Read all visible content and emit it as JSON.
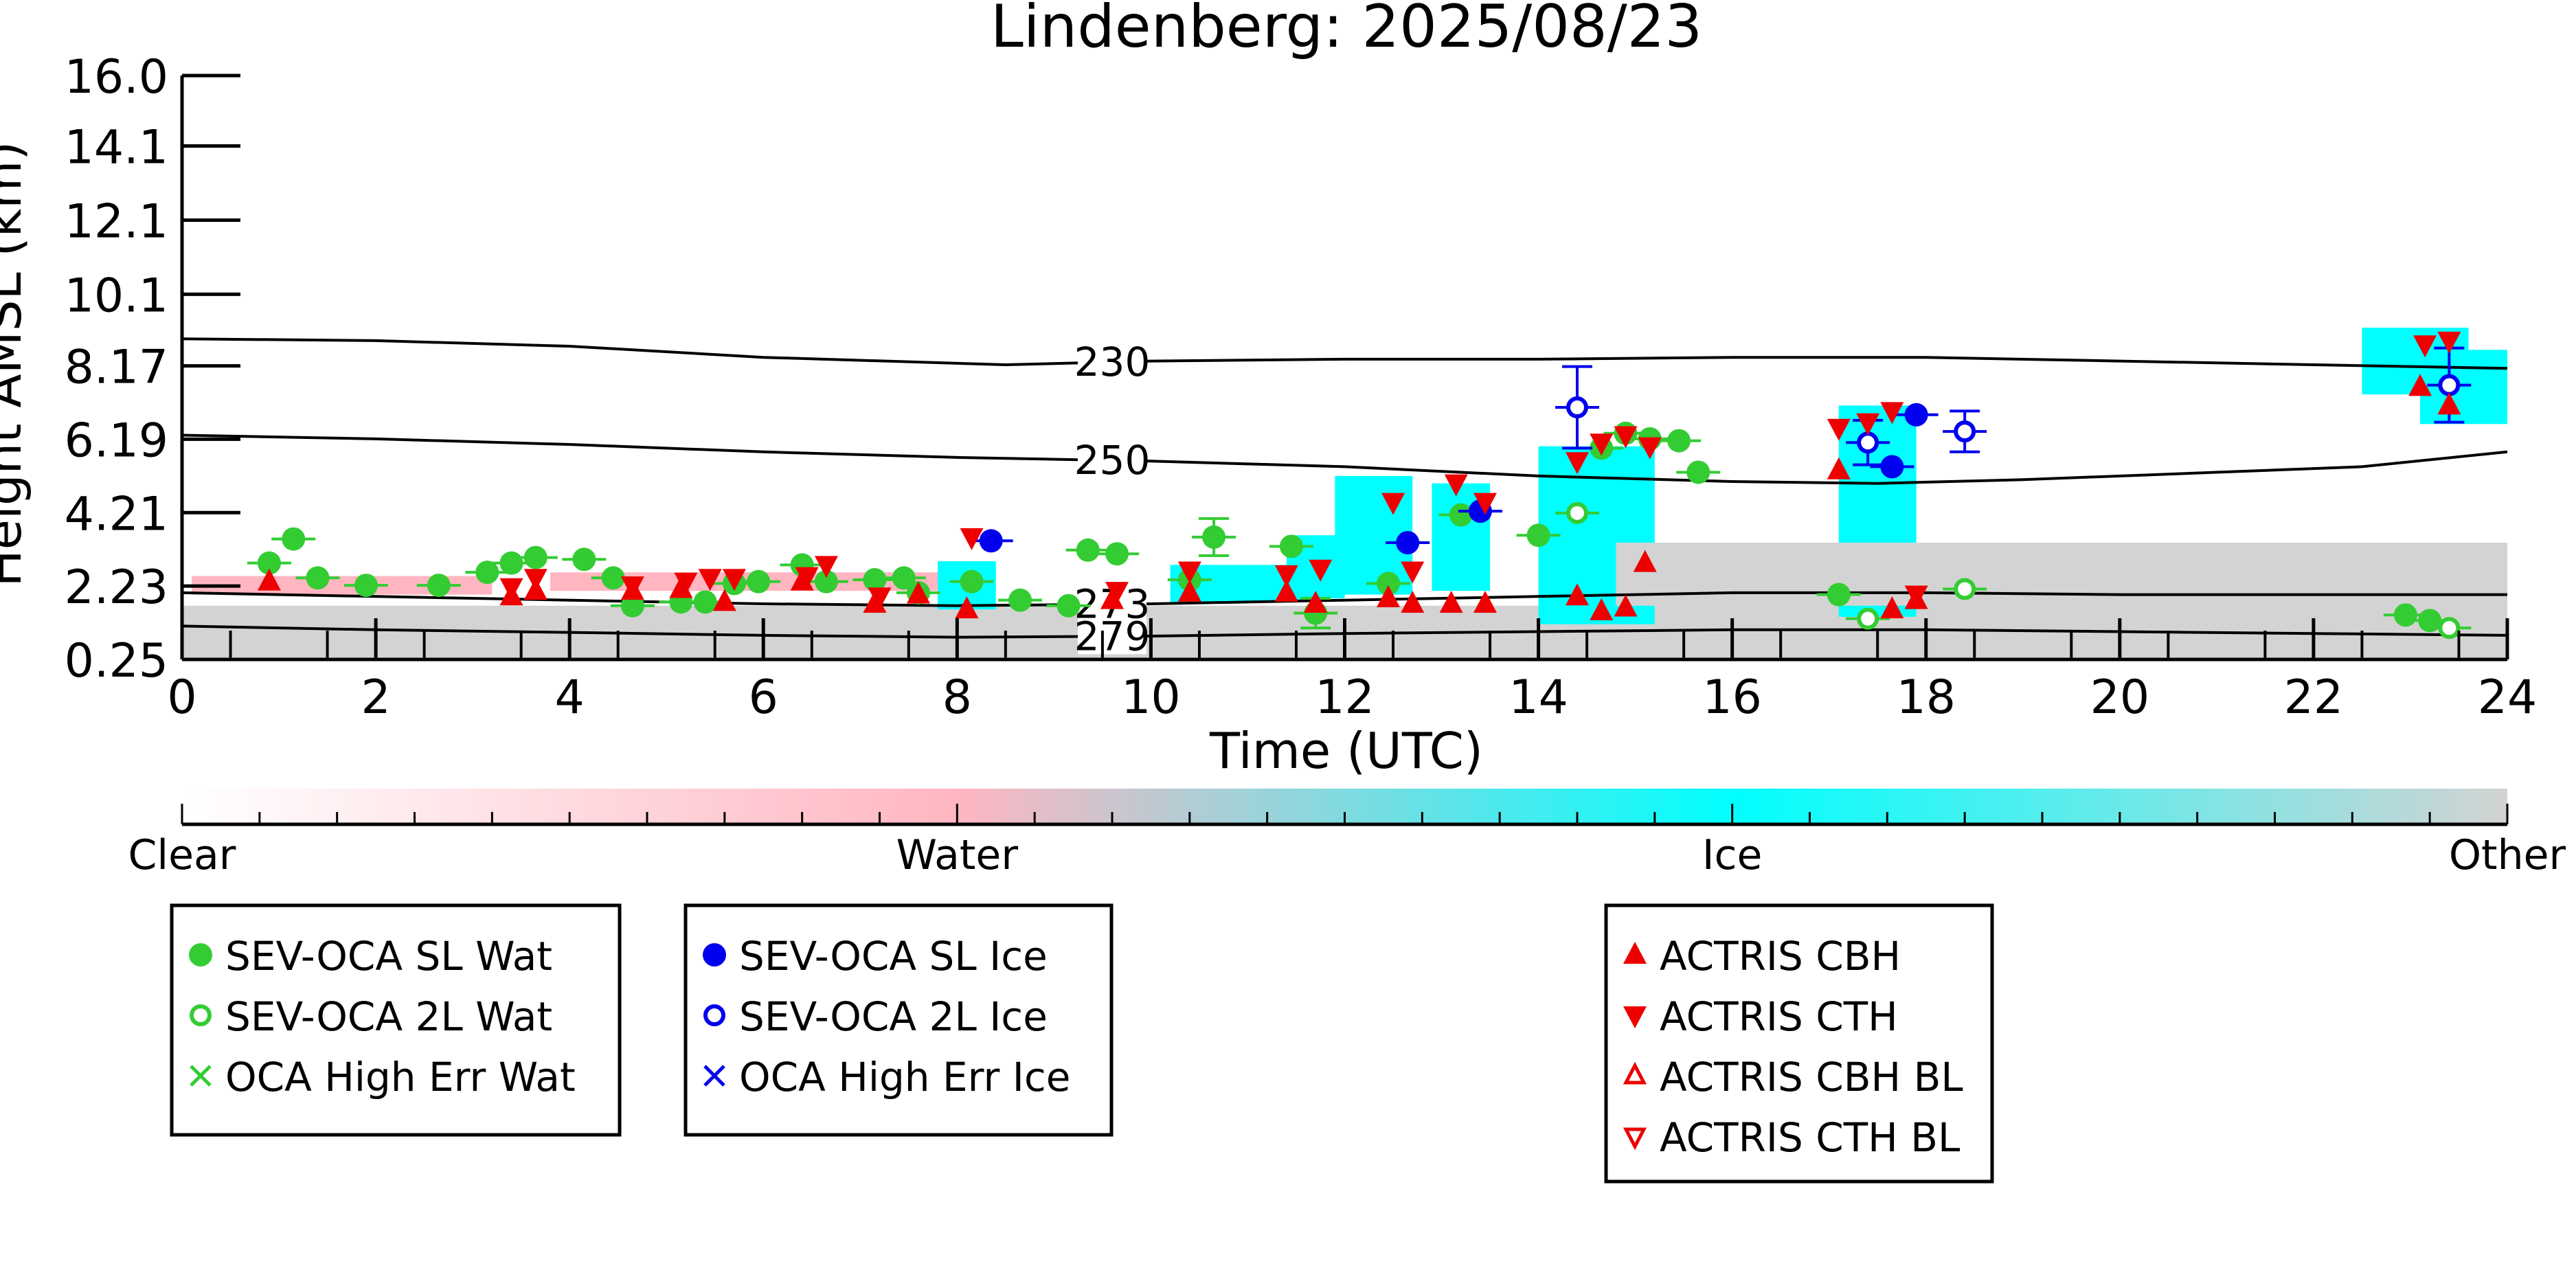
{
  "chart_data": {
    "type": "scatter",
    "title": "Lindenberg: 2025/08/23",
    "xlabel": "Time (UTC)",
    "ylabel": "Height AMSL (km)",
    "xlim": [
      0,
      24
    ],
    "ylim": [
      0.25,
      16.0
    ],
    "x_ticks": [
      "0",
      "2",
      "4",
      "6",
      "8",
      "10",
      "12",
      "14",
      "16",
      "18",
      "20",
      "22",
      "24"
    ],
    "y_ticks": [
      "0.25",
      "2.23",
      "4.21",
      "6.19",
      "8.17",
      "10.1",
      "12.1",
      "14.1",
      "16.0"
    ],
    "grid": false,
    "temperature_contours": [
      {
        "label": "230",
        "label_x": 9.6,
        "points": [
          [
            0,
            8.9
          ],
          [
            2,
            8.85
          ],
          [
            4,
            8.7
          ],
          [
            6,
            8.4
          ],
          [
            8.5,
            8.2
          ],
          [
            10,
            8.3
          ],
          [
            12,
            8.35
          ],
          [
            14,
            8.35
          ],
          [
            16,
            8.4
          ],
          [
            18,
            8.4
          ],
          [
            20,
            8.3
          ],
          [
            22,
            8.2
          ],
          [
            24,
            8.1
          ]
        ]
      },
      {
        "label": "250",
        "label_x": 9.6,
        "points": [
          [
            0,
            6.3
          ],
          [
            2,
            6.2
          ],
          [
            4,
            6.05
          ],
          [
            6,
            5.85
          ],
          [
            8,
            5.7
          ],
          [
            10,
            5.6
          ],
          [
            12,
            5.45
          ],
          [
            14,
            5.2
          ],
          [
            16,
            5.05
          ],
          [
            17.5,
            5.0
          ],
          [
            19,
            5.1
          ],
          [
            21,
            5.3
          ],
          [
            22.5,
            5.45
          ],
          [
            24,
            5.85
          ]
        ]
      },
      {
        "label": "273",
        "label_x": 9.6,
        "points": [
          [
            0,
            2.05
          ],
          [
            2,
            1.95
          ],
          [
            4,
            1.85
          ],
          [
            6,
            1.75
          ],
          [
            8,
            1.7
          ],
          [
            10,
            1.75
          ],
          [
            12,
            1.85
          ],
          [
            14,
            1.95
          ],
          [
            16,
            2.05
          ],
          [
            18,
            2.05
          ],
          [
            20,
            2.0
          ],
          [
            22,
            2.0
          ],
          [
            24,
            2.0
          ]
        ]
      },
      {
        "label": "279",
        "label_x": 9.6,
        "points": [
          [
            0,
            1.15
          ],
          [
            2,
            1.05
          ],
          [
            4,
            0.98
          ],
          [
            6,
            0.9
          ],
          [
            8,
            0.85
          ],
          [
            10,
            0.88
          ],
          [
            12,
            0.95
          ],
          [
            14,
            1.0
          ],
          [
            16,
            1.05
          ],
          [
            18,
            1.05
          ],
          [
            20,
            1.0
          ],
          [
            22,
            0.95
          ],
          [
            24,
            0.9
          ]
        ]
      }
    ],
    "classification_colorbar": {
      "labels": [
        "Clear",
        "Water",
        "Ice",
        "Other"
      ],
      "colors": [
        "#ffffff",
        "#ffb6c1",
        "#00ffff",
        "#d3d3d3"
      ]
    },
    "classification_regions": [
      {
        "class": "Other",
        "color": "#d3d3d3",
        "x": [
          0,
          24
        ],
        "y": [
          0.25,
          1.7
        ]
      },
      {
        "class": "Water",
        "color": "#ffb6c1",
        "x": [
          0.1,
          3.2
        ],
        "y": [
          2.0,
          2.5
        ]
      },
      {
        "class": "Water",
        "color": "#ffb6c1",
        "x": [
          3.8,
          7.8
        ],
        "y": [
          2.1,
          2.6
        ]
      },
      {
        "class": "Ice",
        "color": "#00ffff",
        "x": [
          7.8,
          8.4
        ],
        "y": [
          1.6,
          2.9
        ]
      },
      {
        "class": "Ice",
        "color": "#00ffff",
        "x": [
          10.2,
          11.6
        ],
        "y": [
          1.8,
          2.8
        ]
      },
      {
        "class": "Ice",
        "color": "#00ffff",
        "x": [
          11.4,
          12.0
        ],
        "y": [
          1.9,
          3.6
        ]
      },
      {
        "class": "Ice",
        "color": "#00ffff",
        "x": [
          11.9,
          12.7
        ],
        "y": [
          2.0,
          5.2
        ]
      },
      {
        "class": "Ice",
        "color": "#00ffff",
        "x": [
          12.9,
          13.5
        ],
        "y": [
          2.1,
          5.0
        ]
      },
      {
        "class": "Ice",
        "color": "#00ffff",
        "x": [
          14.0,
          15.2
        ],
        "y": [
          1.2,
          6.0
        ]
      },
      {
        "class": "Ice",
        "color": "#00ffff",
        "x": [
          17.1,
          17.9
        ],
        "y": [
          1.4,
          7.1
        ]
      },
      {
        "class": "Ice",
        "color": "#00ffff",
        "x": [
          22.5,
          23.6
        ],
        "y": [
          7.4,
          9.2
        ]
      },
      {
        "class": "Ice",
        "color": "#00ffff",
        "x": [
          23.1,
          24.0
        ],
        "y": [
          6.6,
          8.6
        ]
      },
      {
        "class": "Other",
        "color": "#d3d3d3",
        "x": [
          14.8,
          24.0
        ],
        "y": [
          1.7,
          3.4
        ]
      }
    ],
    "series": [
      {
        "name": "SEV-OCA SL Wat",
        "color": "#33cc33",
        "marker": "circle-filled",
        "points": [
          [
            0.9,
            2.85
          ],
          [
            1.15,
            3.5
          ],
          [
            1.4,
            2.45
          ],
          [
            1.9,
            2.25
          ],
          [
            2.65,
            2.25
          ],
          [
            3.15,
            2.6
          ],
          [
            3.4,
            2.85
          ],
          [
            3.65,
            3.0
          ],
          [
            4.15,
            2.95
          ],
          [
            4.45,
            2.45
          ],
          [
            4.65,
            1.7
          ],
          [
            5.15,
            1.8
          ],
          [
            5.4,
            1.8
          ],
          [
            5.7,
            2.3
          ],
          [
            5.95,
            2.35
          ],
          [
            6.4,
            2.8
          ],
          [
            6.65,
            2.35
          ],
          [
            7.15,
            2.4
          ],
          [
            7.45,
            2.45
          ],
          [
            7.6,
            2.05
          ],
          [
            8.15,
            2.35
          ],
          [
            8.65,
            1.85
          ],
          [
            9.15,
            1.7
          ],
          [
            9.35,
            3.2
          ],
          [
            9.65,
            3.1
          ],
          [
            10.4,
            2.4
          ],
          [
            10.65,
            3.55
          ],
          [
            11.45,
            3.3
          ],
          [
            11.7,
            1.5
          ],
          [
            12.45,
            2.3
          ],
          [
            13.2,
            4.15
          ],
          [
            14.0,
            3.6
          ],
          [
            14.65,
            5.95
          ],
          [
            14.9,
            6.35
          ],
          [
            15.15,
            6.2
          ],
          [
            15.45,
            6.15
          ],
          [
            15.65,
            5.3
          ],
          [
            17.1,
            2.0
          ],
          [
            22.95,
            1.45
          ],
          [
            23.2,
            1.3
          ]
        ],
        "y_err": [
          [
            10.65,
            0.5
          ],
          [
            11.7,
            0.4
          ]
        ]
      },
      {
        "name": "SEV-OCA 2L Wat",
        "color": "#33cc33",
        "marker": "circle-open",
        "points": [
          [
            14.4,
            4.2
          ],
          [
            17.4,
            1.35
          ],
          [
            18.4,
            2.15
          ],
          [
            23.4,
            1.1
          ]
        ]
      },
      {
        "name": "OCA High Err Wat",
        "color": "#33cc33",
        "marker": "x",
        "points": []
      },
      {
        "name": "SEV-OCA SL Ice",
        "color": "#0000ee",
        "marker": "circle-filled",
        "points": [
          [
            8.35,
            3.45
          ],
          [
            12.65,
            3.4
          ],
          [
            13.4,
            4.25
          ],
          [
            17.65,
            5.45
          ],
          [
            17.9,
            6.85
          ]
        ]
      },
      {
        "name": "SEV-OCA 2L Ice",
        "color": "#0000ee",
        "marker": "circle-open",
        "points": [
          [
            14.4,
            7.05
          ],
          [
            17.4,
            6.1
          ],
          [
            18.4,
            6.4
          ],
          [
            23.4,
            7.65
          ]
        ],
        "y_err": [
          [
            14.4,
            1.1
          ],
          [
            17.4,
            0.6
          ],
          [
            18.4,
            0.55
          ],
          [
            23.4,
            1.0
          ]
        ]
      },
      {
        "name": "OCA High Err Ice",
        "color": "#0000ee",
        "marker": "x",
        "points": []
      },
      {
        "name": "ACTRIS CBH",
        "color": "#ee0000",
        "marker": "triangle-up-filled",
        "points": [
          [
            0.9,
            2.35
          ],
          [
            3.4,
            1.95
          ],
          [
            3.65,
            2.1
          ],
          [
            4.65,
            2.1
          ],
          [
            5.15,
            2.15
          ],
          [
            5.6,
            1.8
          ],
          [
            6.4,
            2.35
          ],
          [
            7.15,
            1.75
          ],
          [
            7.6,
            2.0
          ],
          [
            8.1,
            1.6
          ],
          [
            9.6,
            1.85
          ],
          [
            10.4,
            2.05
          ],
          [
            11.4,
            2.05
          ],
          [
            11.7,
            1.75
          ],
          [
            12.45,
            1.9
          ],
          [
            12.7,
            1.75
          ],
          [
            13.1,
            1.75
          ],
          [
            13.45,
            1.75
          ],
          [
            14.4,
            1.95
          ],
          [
            14.65,
            1.55
          ],
          [
            14.9,
            1.65
          ],
          [
            15.1,
            2.85
          ],
          [
            17.1,
            5.35
          ],
          [
            17.65,
            1.6
          ],
          [
            17.9,
            1.85
          ],
          [
            23.1,
            7.6
          ],
          [
            23.4,
            7.1
          ]
        ]
      },
      {
        "name": "ACTRIS CTH",
        "color": "#ee0000",
        "marker": "triangle-down-filled",
        "points": [
          [
            8.15,
            3.55
          ],
          [
            3.4,
            2.2
          ],
          [
            3.65,
            2.45
          ],
          [
            4.65,
            2.25
          ],
          [
            5.2,
            2.35
          ],
          [
            5.45,
            2.45
          ],
          [
            5.7,
            2.45
          ],
          [
            6.45,
            2.5
          ],
          [
            6.65,
            2.8
          ],
          [
            7.2,
            1.95
          ],
          [
            9.65,
            2.1
          ],
          [
            10.4,
            2.65
          ],
          [
            11.4,
            2.55
          ],
          [
            11.75,
            2.7
          ],
          [
            12.5,
            4.5
          ],
          [
            12.7,
            2.65
          ],
          [
            13.15,
            5.0
          ],
          [
            13.45,
            4.5
          ],
          [
            14.4,
            5.6
          ],
          [
            14.65,
            6.1
          ],
          [
            14.9,
            6.3
          ],
          [
            15.15,
            6.0
          ],
          [
            17.1,
            6.5
          ],
          [
            17.4,
            6.65
          ],
          [
            17.65,
            6.95
          ],
          [
            17.9,
            2.0
          ],
          [
            23.15,
            8.75
          ],
          [
            23.4,
            8.85
          ]
        ]
      },
      {
        "name": "ACTRIS CBH BL",
        "color": "#ee0000",
        "marker": "triangle-up-open",
        "points": []
      },
      {
        "name": "ACTRIS CTH BL",
        "color": "#ee0000",
        "marker": "triangle-down-open",
        "points": []
      }
    ]
  }
}
